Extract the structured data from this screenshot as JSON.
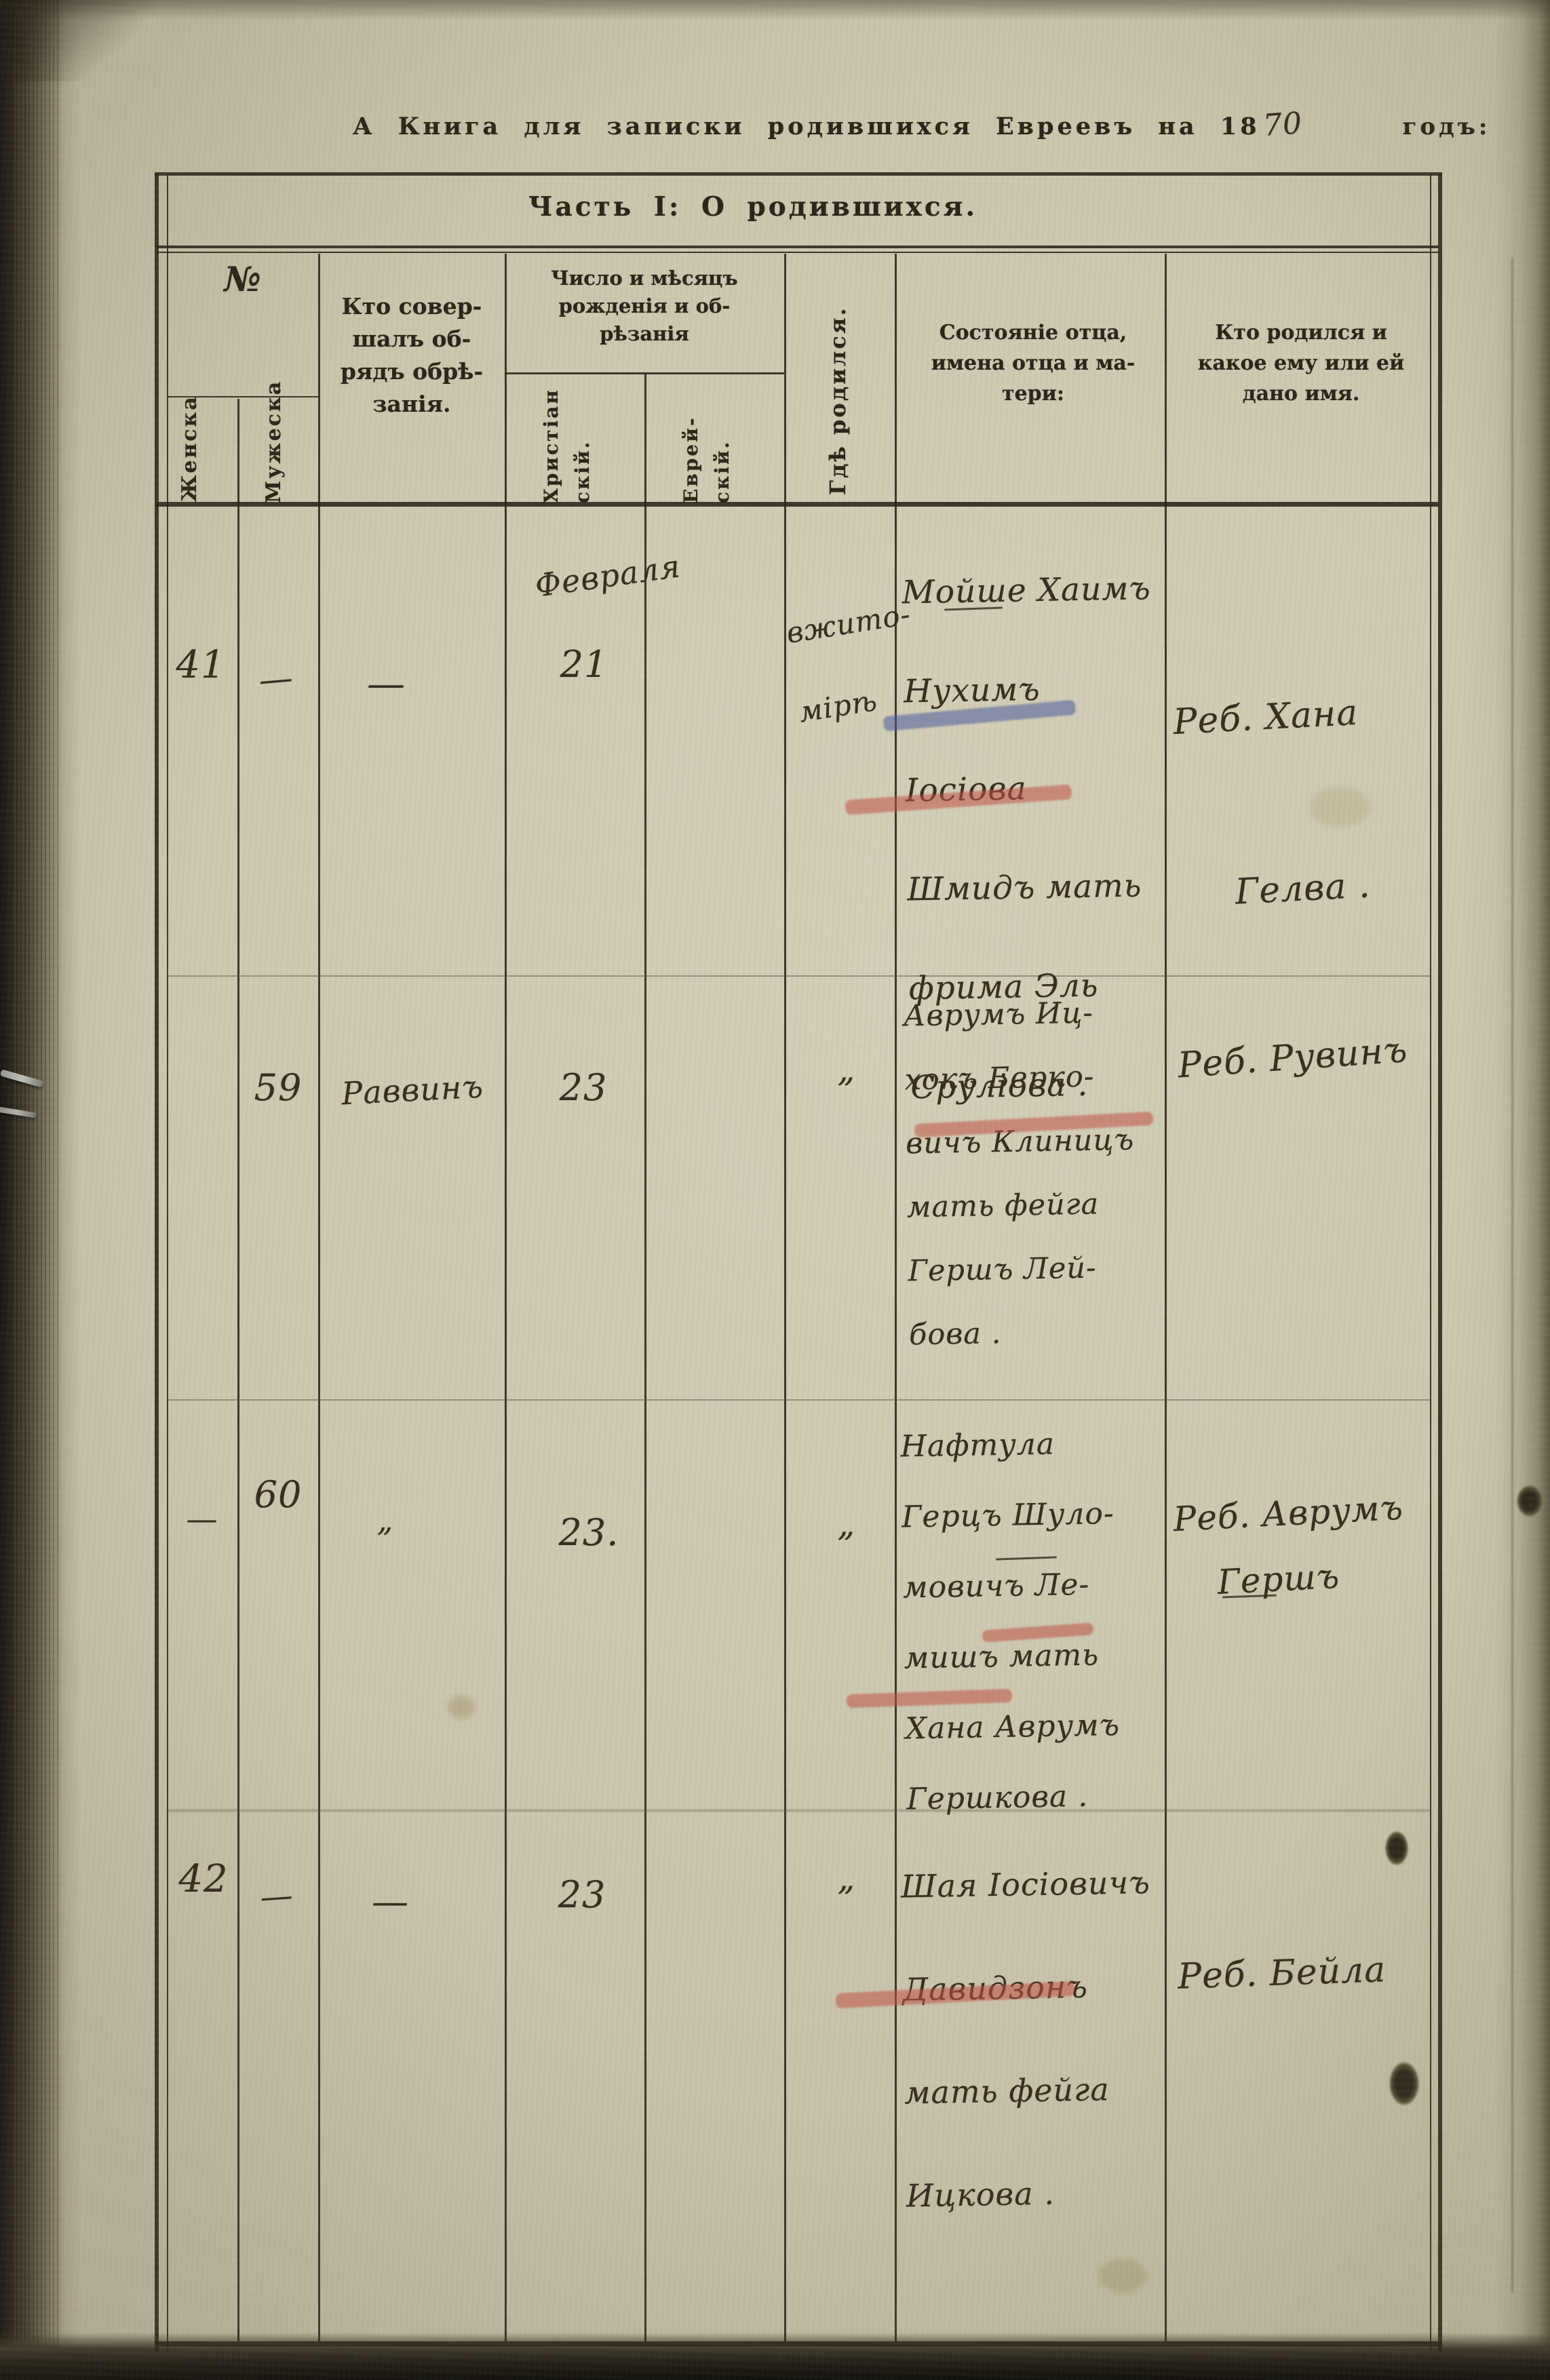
{
  "page": {
    "title_prefix": "А Книга для записки родившихся Евреевъ на 18",
    "title_year_handwritten": "70",
    "title_suffix": "годъ:",
    "part_header": "Часть I: О родившихся."
  },
  "columns": {
    "number_group": "№",
    "female": "Женска",
    "male": "Мужеска",
    "who_performed_lines": [
      "Кто совер-",
      "шалъ об-",
      "рядъ обрѣ-",
      "занія."
    ],
    "date_group_lines": [
      "Число и мѣсяцъ",
      "рожденія и об-",
      "рѣзанія"
    ],
    "christian_parts": [
      "Христіан",
      "скій."
    ],
    "jewish_parts": [
      "Еврей-",
      "скій."
    ],
    "where_born": "Гдѣ родился.",
    "father_status_lines": [
      "Состояніе отца,",
      "имена отца и ма-",
      "тери:"
    ],
    "child_name_lines": [
      "Кто родился и",
      "какое ему или ей",
      "дано имя."
    ]
  },
  "rows": [
    {
      "female_no": "41",
      "male_no": "—",
      "who_performed": "—",
      "month": "Февраля",
      "christian_day": "21",
      "jewish_day": "",
      "where_lines": [
        "вжито-",
        "мірѣ"
      ],
      "father_lines": [
        "Мойше Хаимъ",
        "Нухимъ Іосіова",
        "Шмидъ мать",
        "фрима Эль",
        "Сруліова ."
      ],
      "name_lines": [
        "Реб. Хана",
        "Гелва ."
      ]
    },
    {
      "female_no": "",
      "male_no": "59",
      "who_performed": "Раввинъ",
      "month": "",
      "christian_day": "23",
      "jewish_day": "",
      "where_lines": [
        "„"
      ],
      "father_lines": [
        "Аврумъ Иц-",
        "хокъ Берко-",
        "вичъ Клиницъ",
        "мать фейга",
        "Гершъ Лей-",
        "бова ."
      ],
      "name_lines": [
        "Реб. Рувинъ"
      ]
    },
    {
      "female_no": "—",
      "male_no": "60",
      "who_performed": "„",
      "month": "",
      "christian_day": "23.",
      "jewish_day": "",
      "where_lines": [
        "„"
      ],
      "father_lines": [
        "Нафтула",
        "Герцъ Шуло-",
        "мовичъ Ле-",
        "мишъ мать",
        "Хана Аврумъ",
        "Гершкова ."
      ],
      "name_lines": [
        "Реб. Аврумъ",
        "Гершъ"
      ]
    },
    {
      "female_no": "42",
      "male_no": "—",
      "who_performed": "—",
      "month": "",
      "christian_day": "23",
      "jewish_day": "",
      "where_lines": [
        "„"
      ],
      "father_lines": [
        "Шая Іосіовичъ",
        "Давидзонъ",
        "мать фейга",
        "Ицкова ."
      ],
      "name_lines": [
        "Реб. Бейла"
      ]
    }
  ],
  "theme": {
    "red": "#c05243",
    "blue": "#4a5a9b",
    "ink": "#362b1d",
    "paper": "#cbc6ae"
  }
}
